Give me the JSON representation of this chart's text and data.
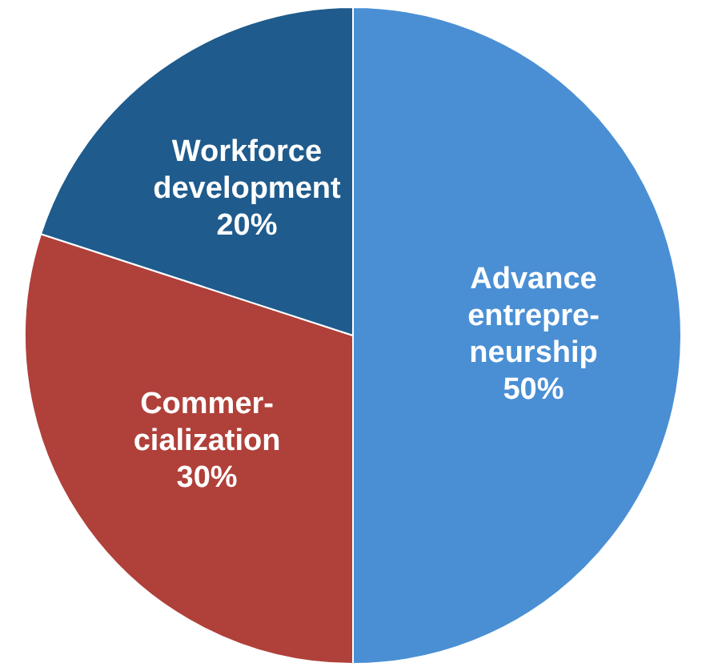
{
  "chart_data": {
    "type": "pie",
    "categories": [
      "Advance\nentrepre-\nneurship",
      "Commer-\ncialization",
      "Workforce\ndevelopment"
    ],
    "values": [
      50,
      30,
      20
    ],
    "value_labels": [
      "50%",
      "30%",
      "20%"
    ],
    "colors": [
      "#4a8fd4",
      "#b0403a",
      "#1f5b8c"
    ],
    "legend": false
  }
}
